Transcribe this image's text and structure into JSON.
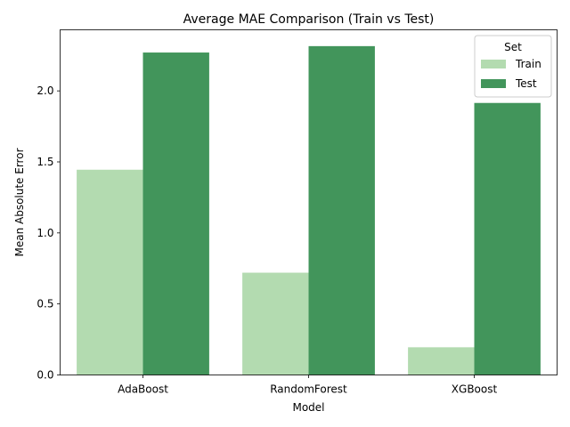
{
  "chart_data": {
    "type": "bar",
    "title": "Average MAE Comparison (Train vs Test)",
    "xlabel": "Model",
    "ylabel": "Mean Absolute Error",
    "categories": [
      "AdaBoost",
      "RandomForest",
      "XGBoost"
    ],
    "series": [
      {
        "name": "Train",
        "color": "#b3dbb0",
        "values": [
          1.445,
          0.72,
          0.195
        ]
      },
      {
        "name": "Test",
        "color": "#42955b",
        "values": [
          2.27,
          2.315,
          1.915
        ]
      }
    ],
    "ylim": [
      0,
      2.43
    ],
    "yticks": [
      "0.0",
      "0.5",
      "1.0",
      "1.5",
      "2.0"
    ],
    "legend": {
      "title": "Set",
      "placement": "top-right"
    },
    "grid": false
  }
}
